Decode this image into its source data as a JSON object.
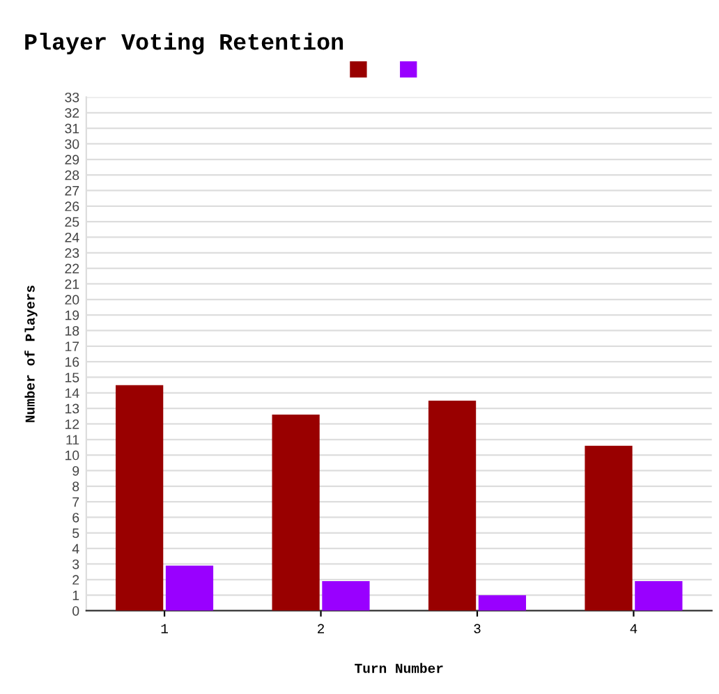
{
  "chart_data": {
    "type": "bar",
    "title": "Player Voting Retention",
    "xlabel": "Turn Number",
    "ylabel": "Number of Players",
    "categories": [
      "1",
      "2",
      "3",
      "4"
    ],
    "series": [
      {
        "color": "#990000",
        "values": [
          14.5,
          12.6,
          13.5,
          10.6
        ]
      },
      {
        "color": "#9900ff",
        "values": [
          2.9,
          1.9,
          1.0,
          1.9
        ]
      }
    ],
    "ylim": [
      0,
      33
    ],
    "yticks": [
      0,
      1,
      2,
      3,
      4,
      5,
      6,
      7,
      8,
      9,
      10,
      11,
      12,
      13,
      14,
      15,
      16,
      17,
      18,
      19,
      20,
      21,
      22,
      23,
      24,
      25,
      26,
      27,
      28,
      29,
      30,
      31,
      32,
      33
    ],
    "grid": "y"
  }
}
